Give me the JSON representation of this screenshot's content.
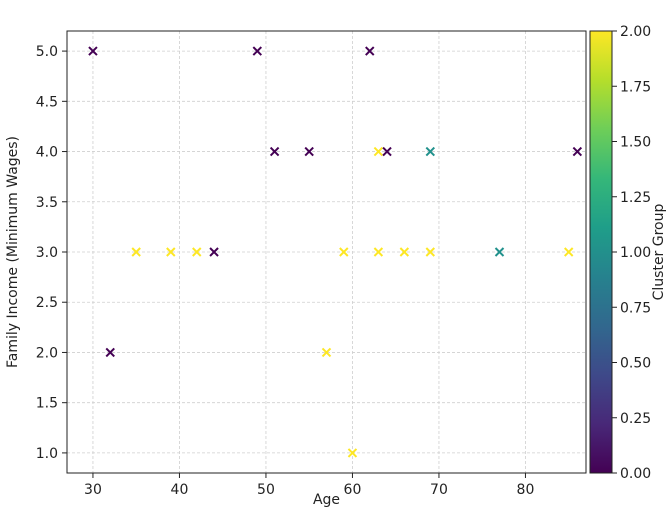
{
  "chart_data": {
    "type": "scatter",
    "title": "",
    "xlabel": "Age",
    "ylabel": "Family Income (Minimum Wages)",
    "xlim": [
      27,
      87
    ],
    "ylim": [
      0.8,
      5.2
    ],
    "xticks": [
      30,
      40,
      50,
      60,
      70,
      80
    ],
    "yticks": [
      1.0,
      1.5,
      2.0,
      2.5,
      3.0,
      3.5,
      4.0,
      4.5,
      5.0
    ],
    "grid": true,
    "marker": "x",
    "colorbar": {
      "label": "Cluster Group",
      "range": [
        0,
        2
      ],
      "ticks": [
        0.0,
        0.25,
        0.5,
        0.75,
        1.0,
        1.25,
        1.5,
        1.75,
        2.0
      ],
      "colormap": "viridis",
      "colors": [
        "#440154",
        "#482878",
        "#3e4989",
        "#31688e",
        "#26828e",
        "#1f9e89",
        "#35b779",
        "#6ece58",
        "#b5de2b",
        "#fde725"
      ]
    },
    "points": [
      {
        "x": 30,
        "y": 5.0,
        "cluster": 0
      },
      {
        "x": 32,
        "y": 2.0,
        "cluster": 0
      },
      {
        "x": 35,
        "y": 3.0,
        "cluster": 2
      },
      {
        "x": 39,
        "y": 3.0,
        "cluster": 2
      },
      {
        "x": 42,
        "y": 3.0,
        "cluster": 2
      },
      {
        "x": 44,
        "y": 3.0,
        "cluster": 0
      },
      {
        "x": 49,
        "y": 5.0,
        "cluster": 0
      },
      {
        "x": 51,
        "y": 4.0,
        "cluster": 0
      },
      {
        "x": 55,
        "y": 4.0,
        "cluster": 0
      },
      {
        "x": 57,
        "y": 2.0,
        "cluster": 2
      },
      {
        "x": 59,
        "y": 3.0,
        "cluster": 2
      },
      {
        "x": 60,
        "y": 1.0,
        "cluster": 2
      },
      {
        "x": 62,
        "y": 5.0,
        "cluster": 0
      },
      {
        "x": 63,
        "y": 4.0,
        "cluster": 2
      },
      {
        "x": 63,
        "y": 3.0,
        "cluster": 2
      },
      {
        "x": 64,
        "y": 4.0,
        "cluster": 0
      },
      {
        "x": 66,
        "y": 3.0,
        "cluster": 2
      },
      {
        "x": 69,
        "y": 3.0,
        "cluster": 2
      },
      {
        "x": 69,
        "y": 4.0,
        "cluster": 1
      },
      {
        "x": 77,
        "y": 3.0,
        "cluster": 1
      },
      {
        "x": 85,
        "y": 3.0,
        "cluster": 2
      },
      {
        "x": 86,
        "y": 4.0,
        "cluster": 0
      }
    ],
    "cluster_colors": {
      "0": "#440154",
      "1": "#21918c",
      "2": "#fde725"
    }
  }
}
